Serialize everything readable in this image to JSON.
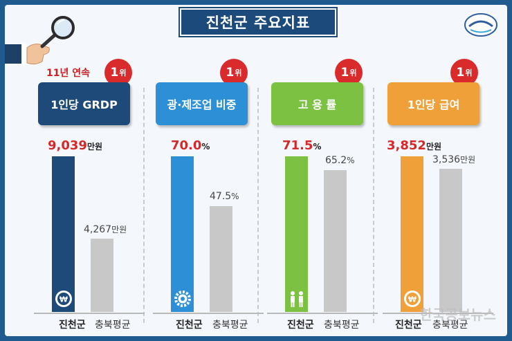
{
  "title": "진천군 주요지표",
  "rank_unit": "위",
  "categories": [
    "진천군",
    "충북평균"
  ],
  "watermark": "한국공보뉴스",
  "indicators": [
    {
      "label": "1인당 GRDP",
      "note": "11년 연속",
      "rank": "1",
      "unit": "만원",
      "jincheon": 9039,
      "avg": 4267,
      "jincheon_label": "9,039",
      "avg_label": "4,267",
      "color": "#1e4a7a"
    },
    {
      "label": "광·제조업 비중",
      "rank": "1",
      "unit": "%",
      "jincheon": 70.0,
      "avg": 47.5,
      "jincheon_label": "70.0",
      "avg_label": "47.5",
      "color": "#2d8fd6"
    },
    {
      "label": "고 용 률",
      "rank": "1",
      "unit": "%",
      "jincheon": 71.5,
      "avg": 65.2,
      "jincheon_label": "71.5",
      "avg_label": "65.2",
      "color": "#7cc142"
    },
    {
      "label": "1인당 급여",
      "rank": "1",
      "unit": "만원",
      "jincheon": 3852,
      "avg": 3536,
      "jincheon_label": "3,852",
      "avg_label": "3,536",
      "color": "#f0a038"
    }
  ],
  "chart_data": {
    "type": "bar",
    "title": "진천군 주요지표",
    "categories": [
      "진천군",
      "충북평균"
    ],
    "panels": [
      {
        "label": "1인당 GRDP",
        "unit": "만원",
        "values": [
          9039,
          4267
        ]
      },
      {
        "label": "광·제조업 비중",
        "unit": "%",
        "values": [
          70.0,
          47.5
        ]
      },
      {
        "label": "고 용 률",
        "unit": "%",
        "values": [
          71.5,
          65.2
        ]
      },
      {
        "label": "1인당 급여",
        "unit": "만원",
        "values": [
          3852,
          3536
        ]
      }
    ],
    "avg_bar_color": "#c8c8c8"
  }
}
